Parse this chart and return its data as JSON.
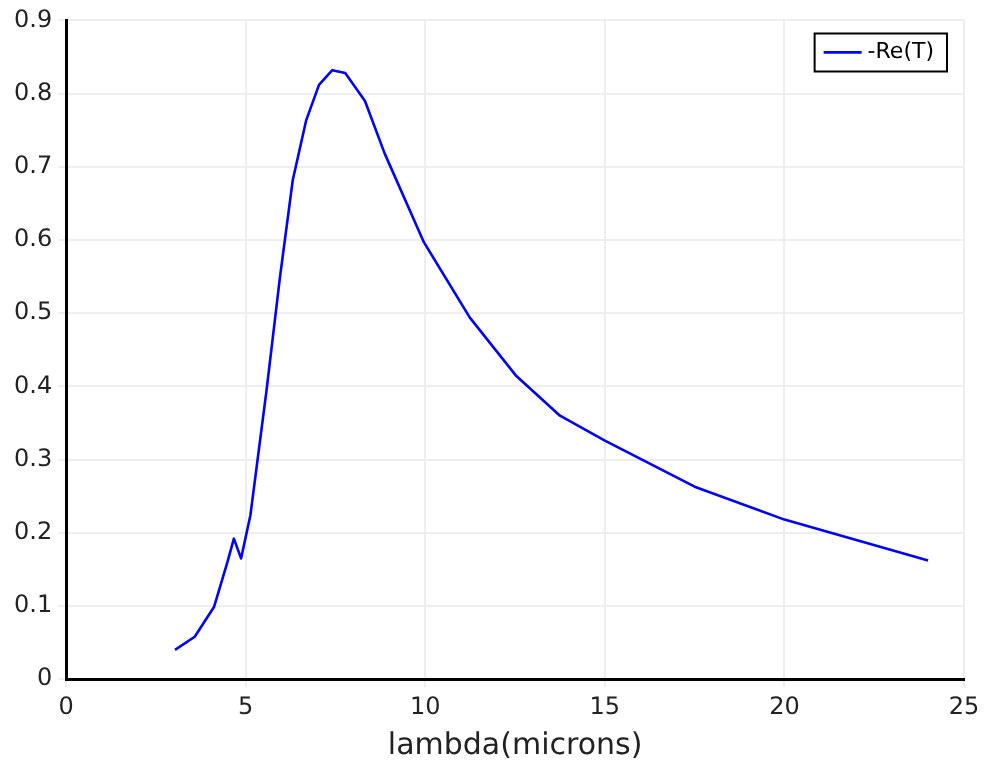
{
  "chart_data": {
    "type": "line",
    "xlabel": "lambda(microns)",
    "x": [
      3.03,
      3.58,
      4.12,
      4.49,
      4.67,
      4.87,
      5.13,
      5.58,
      5.95,
      6.31,
      6.68,
      7.04,
      7.41,
      7.77,
      8.32,
      8.87,
      9.96,
      11.24,
      12.52,
      13.75,
      15,
      17.5,
      20,
      22,
      24
    ],
    "series": [
      {
        "name": "-Re(T)",
        "color": "#0000ff",
        "values": [
          0.04,
          0.058,
          0.099,
          0.16,
          0.192,
          0.165,
          0.224,
          0.395,
          0.548,
          0.682,
          0.763,
          0.812,
          0.832,
          0.828,
          0.79,
          0.718,
          0.597,
          0.494,
          0.415,
          0.36,
          0.326,
          0.263,
          0.218,
          0.19,
          0.162
        ]
      }
    ],
    "xlim": [
      0,
      25
    ],
    "xticks": [
      0,
      5,
      10,
      15,
      20,
      25
    ],
    "ylim": [
      0,
      0.9
    ],
    "yticks": [
      0,
      0.1,
      0.2,
      0.3,
      0.4,
      0.5,
      0.6,
      0.7,
      0.8,
      0.9
    ],
    "grid": true,
    "legend": "top right",
    "marker": "none",
    "line_style": "solid"
  }
}
